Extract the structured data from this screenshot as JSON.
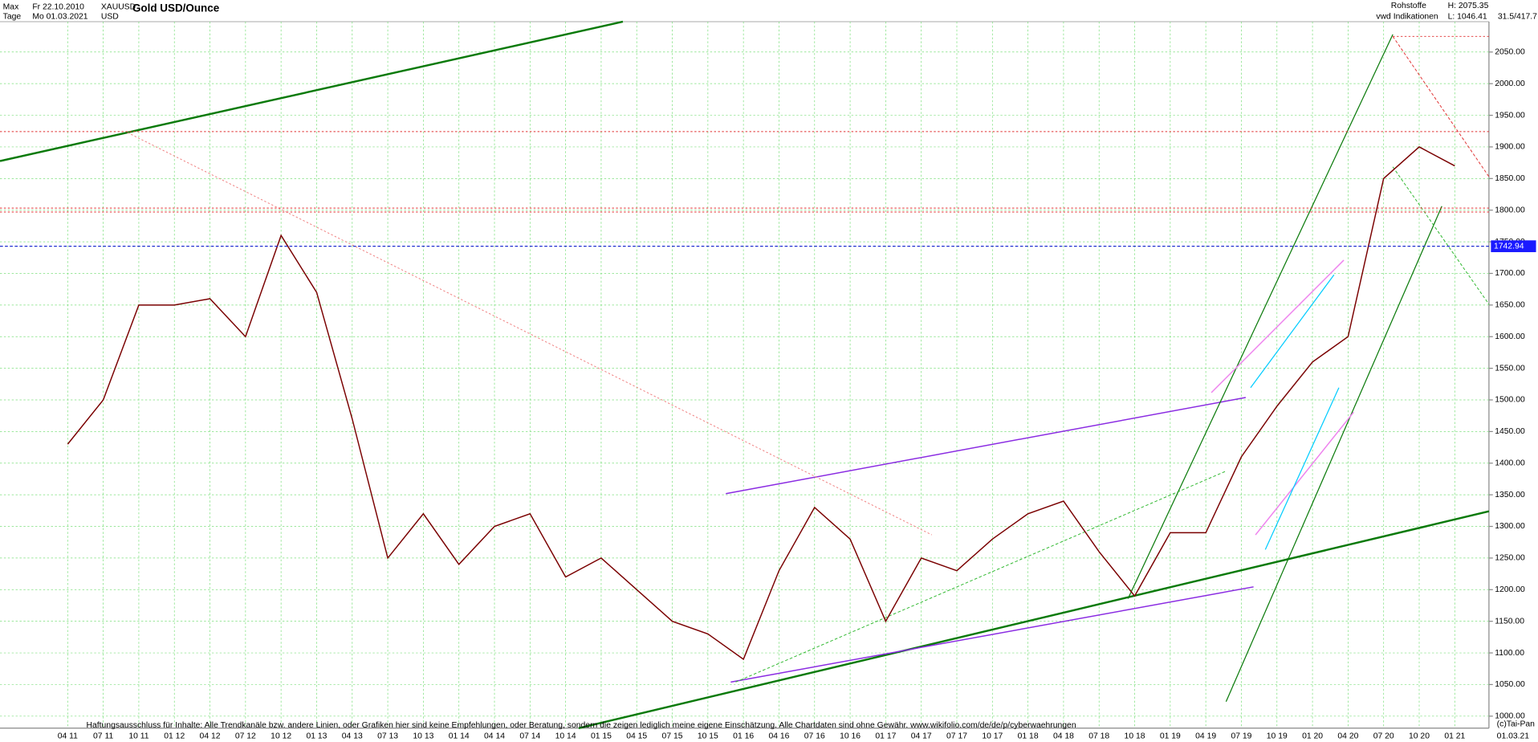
{
  "header": {
    "range": "Max",
    "start": "Fr 22.10.2010",
    "symbol": "XAUUSD",
    "interval": "Tage",
    "end": "Mo 01.03.2021",
    "currency": "USD",
    "group": "Rohstoffe",
    "source": "vwd Indikationen",
    "high": "H: 2075.35",
    "low": "L: 1046.41",
    "ratio": "31.5/417.7"
  },
  "footer": {
    "disclaimer": "Haftungsausschluss für Inhalte: Alle Trendkanäle bzw. andere Linien, oder Grafiken hier sind keine Empfehlungen, oder Beratung, sondern die zeigen lediglich meine eigene Einschätzung. Alle Chartdaten sind ohne Gewähr.  www.wikifolio.com/de/de/p/cyberwaehrungen",
    "copyright": "(c)Tai-Pan",
    "last_date": "01.03.21"
  },
  "chart_data": {
    "type": "line",
    "title": "Gold USD/Ounce",
    "categories": [
      "04 11",
      "07 11",
      "10 11",
      "01 12",
      "04 12",
      "07 12",
      "10 12",
      "01 13",
      "04 13",
      "07 13",
      "10 13",
      "01 14",
      "04 14",
      "07 14",
      "10 14",
      "01 15",
      "04 15",
      "07 15",
      "10 15",
      "01 16",
      "04 16",
      "07 16",
      "10 16",
      "01 17",
      "04 17",
      "07 17",
      "10 17",
      "01 18",
      "04 18",
      "07 18",
      "10 18",
      "01 19",
      "04 19",
      "07 19",
      "10 19",
      "01 20",
      "04 20",
      "07 20",
      "10 20",
      "01 21"
    ],
    "values": [
      1430,
      1500,
      1650,
      1650,
      1660,
      1600,
      1760,
      1670,
      1470,
      1250,
      1320,
      1240,
      1300,
      1320,
      1220,
      1250,
      1200,
      1150,
      1130,
      1090,
      1230,
      1330,
      1280,
      1150,
      1250,
      1230,
      1280,
      1320,
      1340,
      1260,
      1190,
      1290,
      1290,
      1410,
      1490,
      1560,
      1600,
      1850,
      1900,
      1870
    ],
    "color": "#7a0000",
    "last_price": 1742.94,
    "ylim": [
      981,
      2098
    ],
    "yticks": [
      {
        "value": 1000,
        "label": "1000.00"
      },
      {
        "value": 1050,
        "label": "1050.00"
      },
      {
        "value": 1100,
        "label": "1100.00"
      },
      {
        "value": 1150,
        "label": "1150.00"
      },
      {
        "value": 1200,
        "label": "1200.00"
      },
      {
        "value": 1250,
        "label": "1250.00"
      },
      {
        "value": 1300,
        "label": "1300.00"
      },
      {
        "value": 1350,
        "label": "1350.00"
      },
      {
        "value": 1400,
        "label": "1400.00"
      },
      {
        "value": 1450,
        "label": "1450.00"
      },
      {
        "value": 1500,
        "label": "1500.00"
      },
      {
        "value": 1550,
        "label": "1550.00"
      },
      {
        "value": 1600,
        "label": "1600.00"
      },
      {
        "value": 1650,
        "label": "1650.00"
      },
      {
        "value": 1700,
        "label": "1700.00"
      },
      {
        "value": 1750,
        "label": "1750.00"
      },
      {
        "value": 1800,
        "label": "1800.00"
      },
      {
        "value": 1850,
        "label": "1850.00"
      },
      {
        "value": 1900,
        "label": "1900.00"
      },
      {
        "value": 1950,
        "label": "1950.00"
      },
      {
        "value": 2000,
        "label": "2000.00"
      },
      {
        "value": 2050,
        "label": "2050.00"
      }
    ],
    "grid": true
  }
}
